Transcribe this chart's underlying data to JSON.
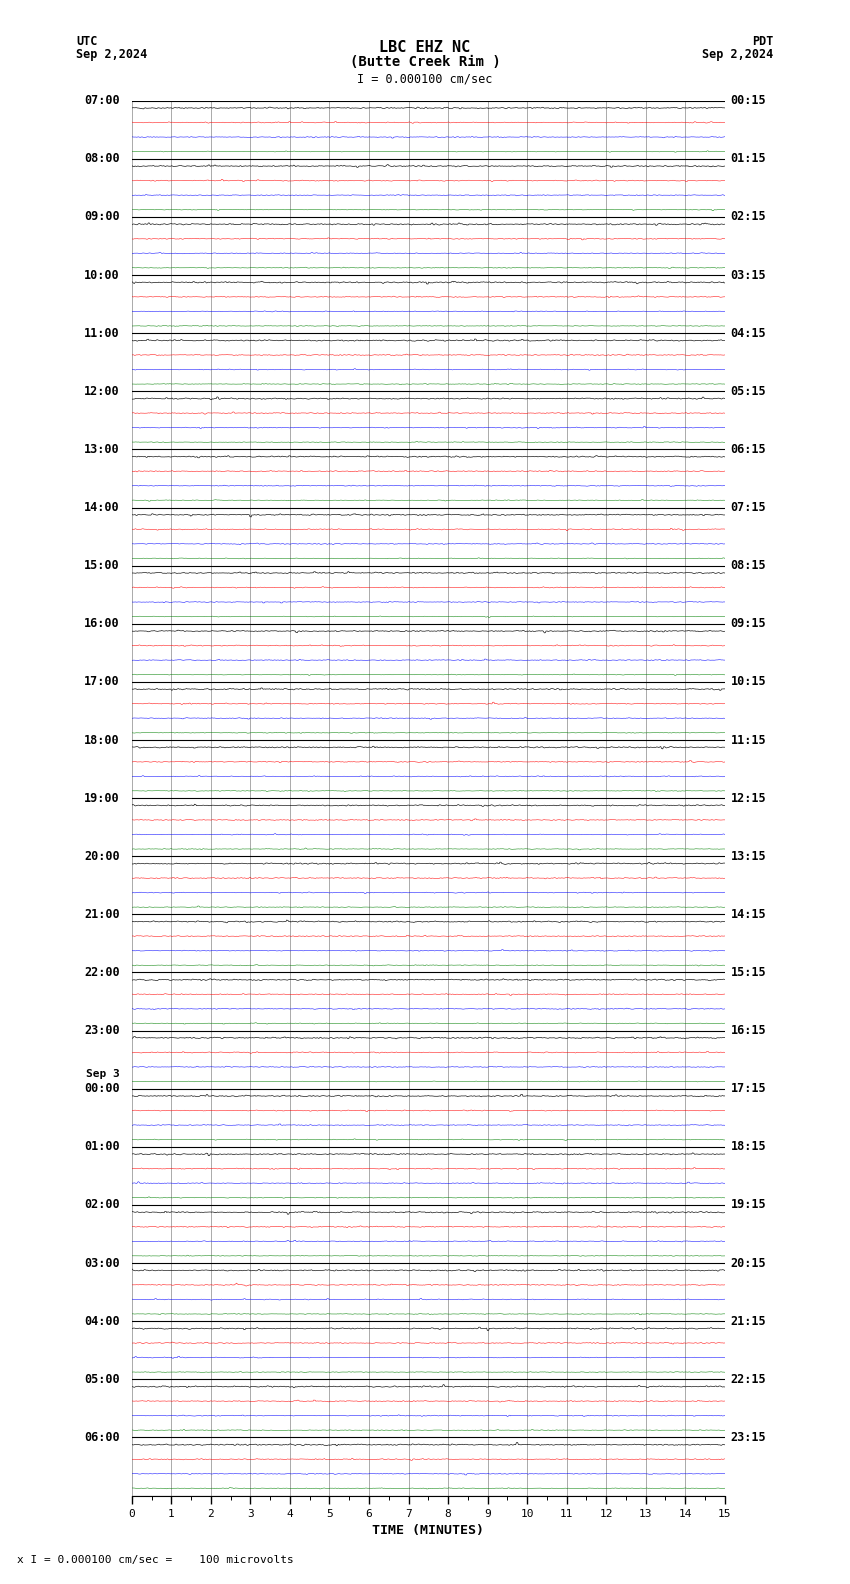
{
  "title_line1": "LBC EHZ NC",
  "title_line2": "(Butte Creek Rim )",
  "scale_label": "I = 0.000100 cm/sec",
  "utc_label": "UTC",
  "utc_date": "Sep 2,2024",
  "pdt_label": "PDT",
  "pdt_date": "Sep 2,2024",
  "sep3_label": "Sep 3",
  "xlabel": "TIME (MINUTES)",
  "footnote": "x I = 0.000100 cm/sec =    100 microvolts",
  "left_times": [
    "07:00",
    "08:00",
    "09:00",
    "10:00",
    "11:00",
    "12:00",
    "13:00",
    "14:00",
    "15:00",
    "16:00",
    "17:00",
    "18:00",
    "19:00",
    "20:00",
    "21:00",
    "22:00",
    "23:00",
    "00:00",
    "01:00",
    "02:00",
    "03:00",
    "04:00",
    "05:00",
    "06:00"
  ],
  "right_times": [
    "00:15",
    "01:15",
    "02:15",
    "03:15",
    "04:15",
    "05:15",
    "06:15",
    "07:15",
    "08:15",
    "09:15",
    "10:15",
    "11:15",
    "12:15",
    "13:15",
    "14:15",
    "15:15",
    "16:15",
    "17:15",
    "18:15",
    "19:15",
    "20:15",
    "21:15",
    "22:15",
    "23:15"
  ],
  "sep3_row": 17,
  "n_rows": 24,
  "traces_per_row": 4,
  "colors": [
    "black",
    "red",
    "blue",
    "green"
  ],
  "x_min": 0,
  "x_max": 15,
  "noise_scale": [
    0.08,
    0.06,
    0.05,
    0.04
  ],
  "bg_color": "white",
  "grid_color": "#888888",
  "font_family": "monospace",
  "title_fontsize": 11,
  "label_fontsize": 8.5,
  "tick_fontsize": 8,
  "footnote_fontsize": 8
}
